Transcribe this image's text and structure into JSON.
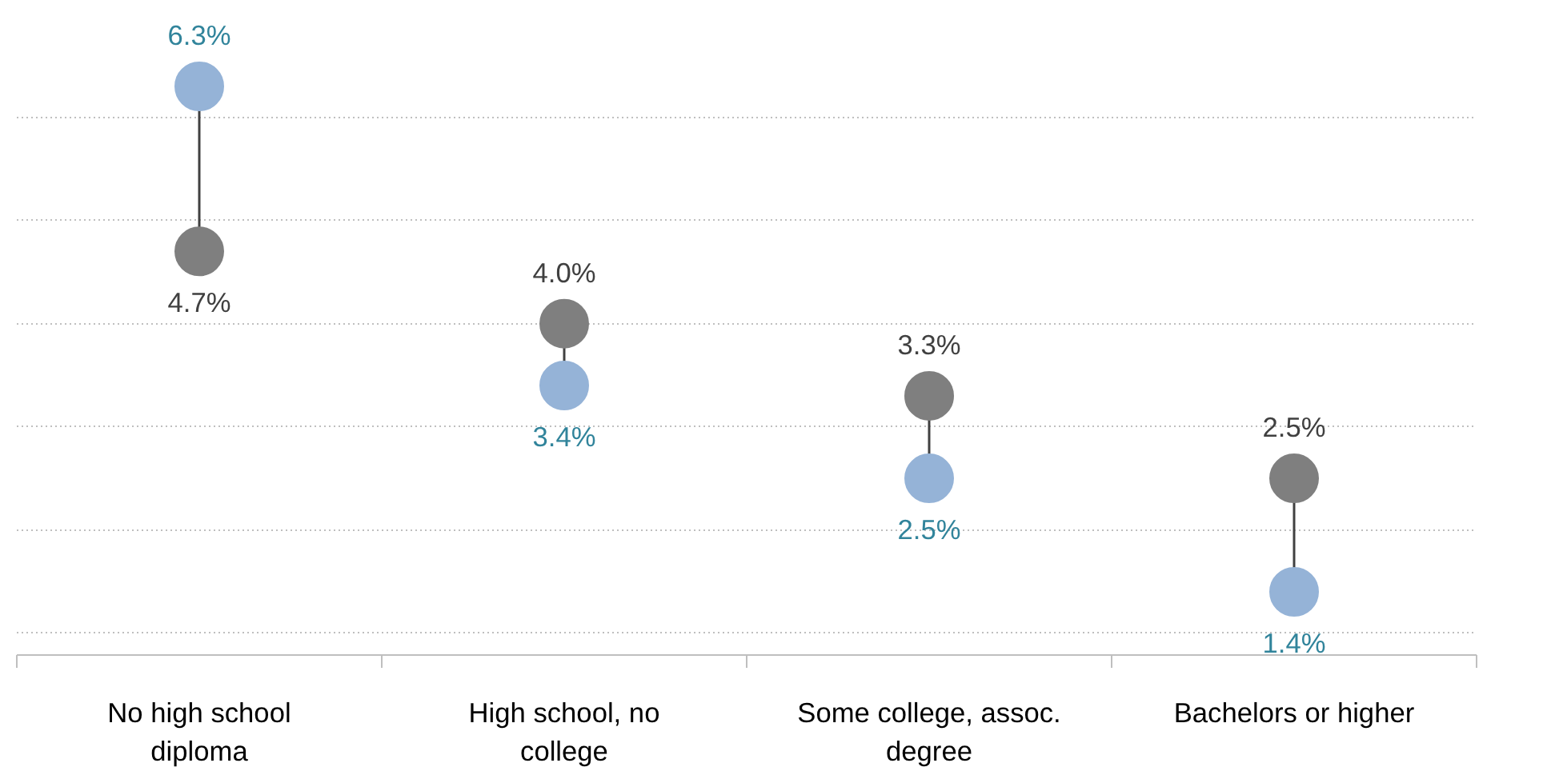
{
  "chart_data": {
    "type": "scatter",
    "categories": [
      "No high school diploma",
      "High school, no college",
      "Some college, assoc. degree",
      "Bachelors or higher"
    ],
    "series": [
      {
        "color": "#7f7f7f",
        "values": [
          4.7,
          4.0,
          3.3,
          2.5
        ],
        "value_labels": [
          "4.7%",
          "4.0%",
          "3.3%",
          "2.5%"
        ]
      },
      {
        "color": "#95b3d7",
        "values": [
          6.3,
          3.4,
          2.5,
          1.4
        ],
        "value_labels": [
          "6.3%",
          "3.4%",
          "2.5%",
          "1.4%"
        ]
      }
    ],
    "grid": "y",
    "tick_labels": "x",
    "marker": "circle"
  }
}
